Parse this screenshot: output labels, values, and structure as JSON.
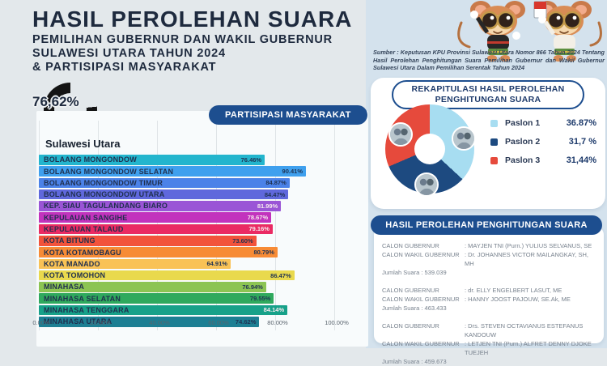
{
  "header": {
    "title": "HASIL PEROLEHAN SUARA",
    "subtitle_lines": [
      "PEMILIHAN GUBERNUR DAN WAKIL GUBERNUR",
      "SULAWESI UTARA TAHUN 2024",
      "& PARTISIPASI MASYARAKAT"
    ]
  },
  "source_note": "Sumber : Keputusan KPU Provinsi Sulawesi Utara Nomor 866 Tahun 2024 Tentang Hasil Perolehan Penghitungan Suara Pemilihan Gubernur dan Wakil Gubernur Sulawesi Utara Dalam Pemilihan Serentak Tahun 2024",
  "gauge": {
    "value_label": "76,62%",
    "region_label": "Sulawesi Utara",
    "percent": 76.62,
    "ring_color": "#141414"
  },
  "participation_banner": "PARTISIPASI MASYARAKAT",
  "chart_data": [
    {
      "type": "bar",
      "orientation": "horizontal",
      "title": "PARTISIPASI MASYARAKAT",
      "categories": [
        "BOLAANG MONGONDOW",
        "BOLAANG MONGONDOW SELATAN",
        "BOLAANG MONGONDOW TIMUR",
        "BOLAANG MONGONDOW UTARA",
        "KEP. SIAU TAGULANDANG BIARO",
        "KEPULAUAN SANGIHE",
        "KEPULAUAN TALAUD",
        "KOTA BITUNG",
        "KOTA KOTAMOBAGU",
        "KOTA MANADO",
        "KOTA TOMOHON",
        "MINAHASA",
        "MINAHASA SELATAN",
        "MINAHASA TENGGARA",
        "MINAHASA UTARA"
      ],
      "values": [
        76.46,
        90.41,
        84.87,
        84.47,
        81.99,
        78.67,
        79.16,
        73.6,
        80.79,
        64.91,
        86.47,
        76.94,
        79.55,
        84.14,
        74.62
      ],
      "value_labels": [
        "76.46%",
        "90.41%",
        "84.87%",
        "84.47%",
        "81.99%",
        "78.67%",
        "79.16%",
        "73.60%",
        "80.79%",
        "64.91%",
        "86.47%",
        "76.94%",
        "79.55%",
        "84.14%",
        "74.62%"
      ],
      "bar_colors": [
        "#23b5cd",
        "#3fa0ee",
        "#4b82e8",
        "#5f68dc",
        "#9a55d6",
        "#c233bd",
        "#ea2a63",
        "#f2533b",
        "#f78b35",
        "#f9c256",
        "#e9d94d",
        "#8cc453",
        "#2fa95d",
        "#17a189",
        "#1d7f93"
      ],
      "light_value_label_indices": [
        4,
        5,
        6,
        13
      ],
      "x_ticks": [
        "0.00%",
        "20.00%",
        "40.00%",
        "60.00%",
        "80.00%",
        "100.00%"
      ],
      "xlim": [
        0,
        100
      ],
      "grid": true,
      "legend_position": "none"
    },
    {
      "type": "pie",
      "subtype": "donut",
      "title": "REKAPITULASI HASIL PEROLEHAN PENGHITUNGAN SUARA",
      "labels": [
        "Paslon 1",
        "Paslon 2",
        "Paslon 3"
      ],
      "values": [
        36.87,
        31.7,
        31.44
      ],
      "value_labels": [
        "36.87%",
        "31,7 %",
        "31,44%"
      ],
      "colors": [
        "#a7ddf1",
        "#1d4a80",
        "#e64a3c"
      ],
      "legend_position": "right"
    },
    {
      "type": "pie",
      "subtype": "donut-gauge",
      "title": "Sulawesi Utara",
      "labels": [
        "Partisipasi"
      ],
      "values": [
        76.62
      ],
      "value_labels": [
        "76,62%"
      ],
      "colors": [
        "#141414"
      ]
    }
  ],
  "recap": {
    "title_line1": "REKAPITULASI HASIL PEROLEHAN",
    "title_line2": "PENGHITUNGAN SUARA",
    "legend": [
      {
        "label": "Paslon 1",
        "value": "36.87%",
        "color": "#a7ddf1"
      },
      {
        "label": "Paslon 2",
        "value": "31,7 %",
        "color": "#1d4a80"
      },
      {
        "label": "Paslon 3",
        "value": "31,44%",
        "color": "#e64a3c"
      }
    ]
  },
  "results": {
    "header": "HASIL PEROLEHAN PENGHITUNGAN SUARA",
    "gubernur_label": "CALON GUBERNUR",
    "wakil_label": "CALON WAKIL GUBERNUR",
    "entries": [
      {
        "gubernur": "MAYJEN TNI (Purn.) YULIUS SELVANUS, SE",
        "wakil": "Dr. JOHANNES VICTOR MAILANGKAY, SH, MH",
        "jumlah": "Jumlah Suara : 539.039"
      },
      {
        "gubernur": "dr. ELLY ENGELBERT LASUT, ME",
        "wakil": "HANNY JOOST PAJOUW, SE.Ak, ME",
        "jumlah": "Jumlah Suara : 463.433"
      },
      {
        "gubernur": "Drs. STEVEN OCTAVIANUS ESTEFANUS KANDOUW",
        "wakil": "LETJEN TNI (Purn.) ALFRET DENNY DJOKE TUEJEH",
        "jumlah": "Jumlah Suara : 459.673"
      }
    ]
  }
}
